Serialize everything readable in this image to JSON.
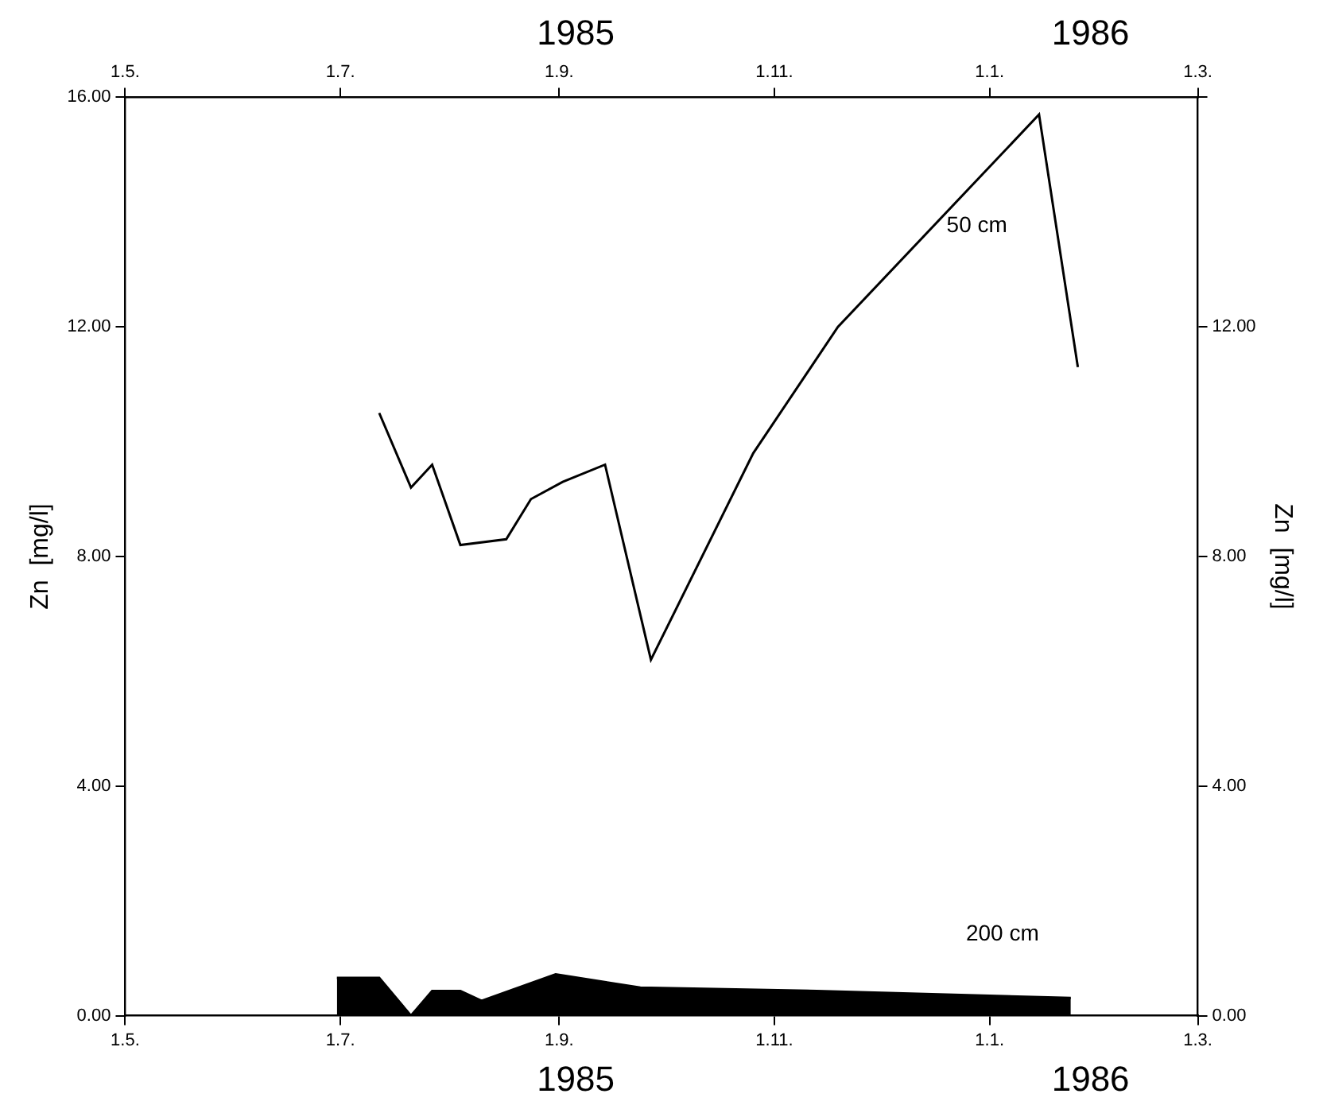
{
  "chart_data": {
    "type": "line",
    "ylabel": "Zn  [mg/l]",
    "y2label": "Zn  [mg/l]",
    "xlim": [
      "1985-05-01",
      "1986-03-01"
    ],
    "xticks": [
      {
        "value": "1985-05-01",
        "label": "1.5."
      },
      {
        "value": "1985-07-01",
        "label": "1.7."
      },
      {
        "value": "1985-09-01",
        "label": "1.9."
      },
      {
        "value": "1985-11-01",
        "label": "1.11."
      },
      {
        "value": "1986-01-01",
        "label": "1.1."
      },
      {
        "value": "1986-03-01",
        "label": "1.3."
      }
    ],
    "x2lim": [
      "1985-05-01",
      "1986-03-01"
    ],
    "x2ticks": [
      {
        "value": "1985-05-01",
        "label": "1.5."
      },
      {
        "value": "1985-07-01",
        "label": "1.7."
      },
      {
        "value": "1985-09-01",
        "label": "1.9."
      },
      {
        "value": "1985-11-01",
        "label": "1.11."
      },
      {
        "value": "1986-01-01",
        "label": "1.1."
      },
      {
        "value": "1986-03-01",
        "label": "1.3."
      }
    ],
    "ylim": [
      0,
      16
    ],
    "yticks": [
      {
        "value": 0,
        "label": "0.00"
      },
      {
        "value": 4,
        "label": "4.00"
      },
      {
        "value": 8,
        "label": "8.00"
      },
      {
        "value": 12,
        "label": "12.00"
      },
      {
        "value": 16,
        "label": "16.00"
      }
    ],
    "y2lim": [
      0,
      16
    ],
    "y2ticks": [
      {
        "value": 0,
        "label": "0.00"
      },
      {
        "value": 4,
        "label": "4.00"
      },
      {
        "value": 8,
        "label": "8.00"
      },
      {
        "value": 12,
        "label": "12.00"
      },
      {
        "value": 16,
        "label": null
      }
    ],
    "grid": false,
    "legend": false,
    "marker": "none",
    "line_style": "solid",
    "annotations": [
      "1985",
      "1986",
      "1985",
      "1986"
    ],
    "series": [
      {
        "name": "50 cm",
        "type": "line",
        "color": "#000000",
        "x": [
          "1985-07-12",
          "1985-07-21",
          "1985-07-27",
          "1985-08-04",
          "1985-08-17",
          "1985-08-24",
          "1985-09-02",
          "1985-09-14",
          "1985-09-27",
          "1985-10-26",
          "1985-11-19",
          "1986-01-15",
          "1986-01-26"
        ],
        "values": [
          10.5,
          9.2,
          9.6,
          8.2,
          8.3,
          9.0,
          9.3,
          9.6,
          6.2,
          9.8,
          12.0,
          15.7,
          11.3
        ]
      },
      {
        "name": "200 cm",
        "type": "area",
        "color": "#000000",
        "x": [
          "1985-06-30",
          "1985-07-12",
          "1985-07-21",
          "1985-07-27",
          "1985-08-04",
          "1985-08-10",
          "1985-08-31",
          "1985-09-24",
          "1985-11-13",
          "1986-01-24"
        ],
        "values": [
          0.66,
          0.66,
          0,
          0.43,
          0.43,
          0.26,
          0.72,
          0.49,
          0.43,
          0.31
        ]
      }
    ]
  }
}
